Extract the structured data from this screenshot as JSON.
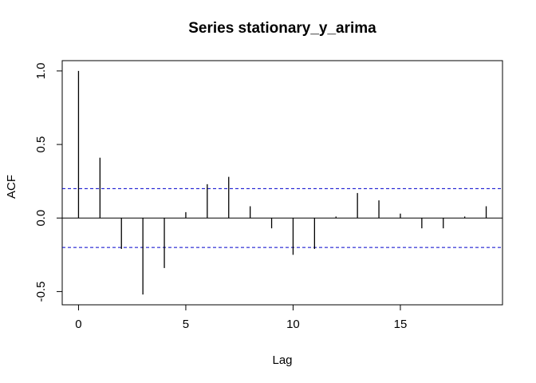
{
  "chart_data": {
    "type": "bar",
    "title": "Series  stationary_y_arima",
    "xlabel": "Lag",
    "ylabel": "ACF",
    "x": [
      0,
      1,
      2,
      3,
      4,
      5,
      6,
      7,
      8,
      9,
      10,
      11,
      12,
      13,
      14,
      15,
      16,
      17,
      18,
      19
    ],
    "values": [
      1.0,
      0.41,
      -0.21,
      -0.52,
      -0.34,
      0.04,
      0.23,
      0.28,
      0.08,
      -0.07,
      -0.25,
      -0.21,
      0.01,
      0.17,
      0.12,
      0.03,
      -0.07,
      -0.07,
      0.01,
      0.08
    ],
    "confidence_band": 0.2,
    "xlim": [
      -0.76,
      19.76
    ],
    "ylim": [
      -0.59,
      1.07
    ],
    "xticks": [
      0,
      5,
      10,
      15
    ],
    "xtick_labels": [
      "0",
      "5",
      "10",
      "15"
    ],
    "yticks": [
      -0.5,
      0.0,
      0.5,
      1.0
    ],
    "ytick_labels": [
      "-0.5",
      "0.0",
      "0.5",
      "1.0"
    ],
    "grid": false,
    "colors": {
      "bars": "#000000",
      "zero_line": "#000000",
      "confidence_band": "#0000cc",
      "axes": "#000000"
    }
  }
}
